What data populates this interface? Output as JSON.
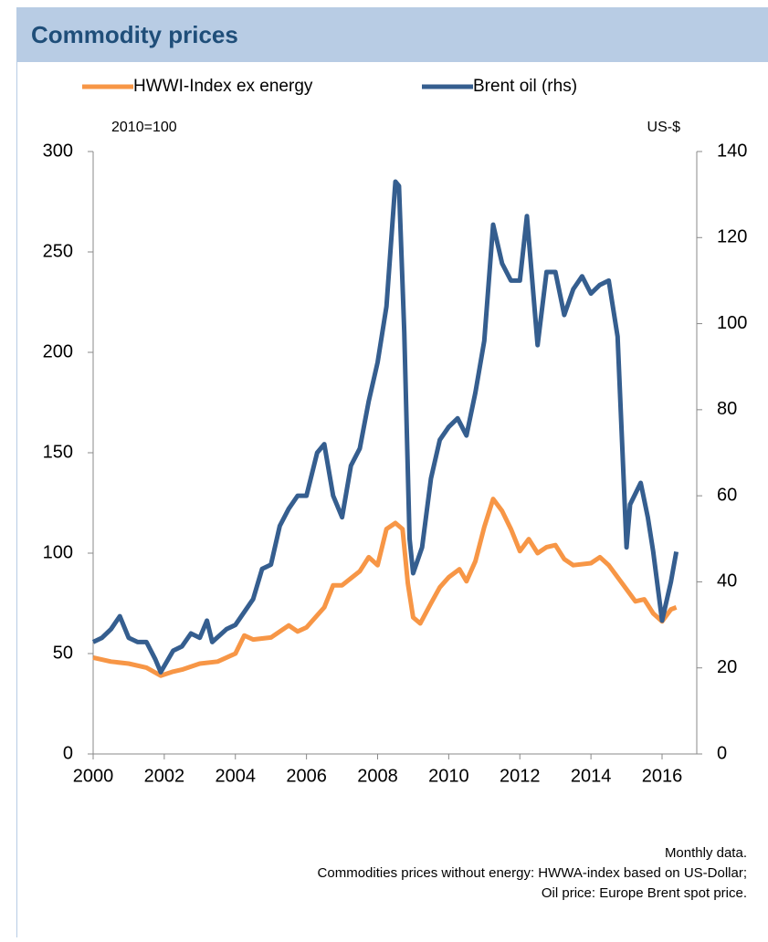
{
  "chart_data": {
    "type": "line",
    "title": "Commodity prices",
    "ylabel": "2010=100",
    "y2label": "US-$",
    "notes": [
      "Monthly data.",
      "Commodities prices without energy: HWWA-index based on US-Dollar;",
      "Oil price: Europe Brent spot price."
    ],
    "xlim": [
      2000,
      2017
    ],
    "xticks": [
      2000,
      2002,
      2004,
      2006,
      2008,
      2010,
      2012,
      2014,
      2016
    ],
    "ylim": [
      0,
      300
    ],
    "yticks": [
      0,
      50,
      100,
      150,
      200,
      250,
      300
    ],
    "y2lim": [
      0,
      140
    ],
    "y2ticks": [
      0,
      20,
      40,
      60,
      80,
      100,
      120,
      140
    ],
    "legend": "top",
    "series": [
      {
        "name": "HWWI-Index ex energy",
        "color": "#f79646",
        "x": [
          2000,
          2000.5,
          2001,
          2001.5,
          2001.9,
          2002.25,
          2002.5,
          2003,
          2003.5,
          2004,
          2004.25,
          2004.5,
          2005,
          2005.5,
          2005.75,
          2006,
          2006.5,
          2006.75,
          2007,
          2007.5,
          2007.75,
          2008,
          2008.25,
          2008.5,
          2008.7,
          2008.85,
          2009,
          2009.2,
          2009.5,
          2009.75,
          2010,
          2010.3,
          2010.5,
          2010.75,
          2011,
          2011.25,
          2011.5,
          2011.75,
          2012,
          2012.25,
          2012.5,
          2012.75,
          2013,
          2013.25,
          2013.5,
          2014,
          2014.25,
          2014.5,
          2015,
          2015.25,
          2015.5,
          2015.75,
          2016,
          2016.25,
          2016.4
        ],
        "values": [
          48,
          46,
          45,
          43,
          39,
          41,
          42,
          45,
          46,
          50,
          59,
          57,
          58,
          64,
          61,
          63,
          73,
          84,
          84,
          91,
          98,
          94,
          112,
          115,
          112,
          85,
          68,
          65,
          75,
          83,
          88,
          92,
          86,
          96,
          113,
          127,
          121,
          112,
          101,
          107,
          100,
          103,
          104,
          97,
          94,
          95,
          98,
          94,
          82,
          76,
          77,
          70,
          66,
          72,
          73
        ]
      },
      {
        "name": "Brent oil (rhs)",
        "color": "#355e8f",
        "axis": "y2",
        "x": [
          2000,
          2000.25,
          2000.5,
          2000.75,
          2001,
          2001.25,
          2001.5,
          2001.75,
          2001.9,
          2002.25,
          2002.5,
          2002.75,
          2003,
          2003.2,
          2003.35,
          2003.75,
          2004,
          2004.5,
          2004.75,
          2005,
          2005.25,
          2005.5,
          2005.75,
          2006,
          2006.3,
          2006.5,
          2006.75,
          2007,
          2007.25,
          2007.5,
          2007.75,
          2008,
          2008.25,
          2008.5,
          2008.6,
          2008.75,
          2008.9,
          2009,
          2009.25,
          2009.5,
          2009.75,
          2010,
          2010.25,
          2010.5,
          2010.75,
          2011,
          2011.25,
          2011.5,
          2011.75,
          2012,
          2012.2,
          2012.5,
          2012.75,
          2013,
          2013.25,
          2013.5,
          2013.75,
          2014,
          2014.25,
          2014.5,
          2014.75,
          2015,
          2015.1,
          2015.4,
          2015.6,
          2015.75,
          2016,
          2016.25,
          2016.4
        ],
        "values": [
          26,
          27,
          29,
          32,
          27,
          26,
          26,
          22,
          19,
          24,
          25,
          28,
          27,
          31,
          26,
          29,
          30,
          36,
          43,
          44,
          53,
          57,
          60,
          60,
          70,
          72,
          60,
          55,
          67,
          71,
          82,
          91,
          104,
          133,
          132,
          98,
          50,
          42,
          48,
          64,
          73,
          76,
          78,
          74,
          84,
          96,
          123,
          114,
          110,
          110,
          125,
          95,
          112,
          112,
          102,
          108,
          111,
          107,
          109,
          110,
          97,
          48,
          58,
          63,
          55,
          47,
          31,
          40,
          47
        ]
      }
    ]
  }
}
